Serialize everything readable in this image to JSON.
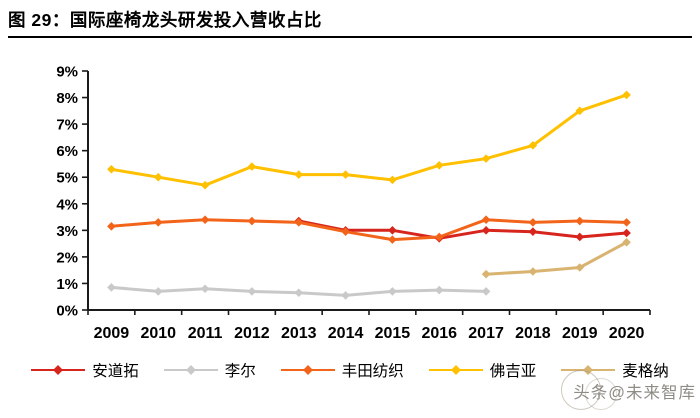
{
  "figure": {
    "title": "图 29：国际座椅龙头研发投入营收占比"
  },
  "watermark": {
    "text": "头条@未来智库"
  },
  "chart_data": {
    "type": "line",
    "title": "图 29：国际座椅龙头研发投入营收占比",
    "categories": [
      "2009",
      "2010",
      "2011",
      "2012",
      "2013",
      "2014",
      "2015",
      "2016",
      "2017",
      "2018",
      "2019",
      "2020"
    ],
    "series": [
      {
        "name": "安道拓",
        "color": "#D7251D",
        "values": [
          null,
          null,
          null,
          null,
          3.35,
          3.0,
          3.0,
          2.7,
          3.0,
          2.95,
          2.75,
          2.9
        ]
      },
      {
        "name": "李尔",
        "color": "#C9C9C9",
        "values": [
          0.85,
          0.7,
          0.8,
          0.7,
          0.65,
          0.55,
          0.7,
          0.75,
          0.7,
          null,
          null,
          null
        ]
      },
      {
        "name": "丰田纺织",
        "color": "#F3641B",
        "values": [
          3.15,
          3.3,
          3.4,
          3.35,
          3.3,
          2.95,
          2.65,
          2.75,
          3.4,
          3.3,
          3.35,
          3.3
        ]
      },
      {
        "name": "佛吉亚",
        "color": "#FFC000",
        "values": [
          5.3,
          5.0,
          4.7,
          5.4,
          5.1,
          5.1,
          4.9,
          5.45,
          5.7,
          6.2,
          7.5,
          8.1
        ]
      },
      {
        "name": "麦格纳",
        "color": "#D8B470",
        "values": [
          null,
          null,
          null,
          null,
          null,
          null,
          null,
          null,
          1.35,
          1.45,
          1.6,
          2.55
        ]
      }
    ],
    "xlabel": "",
    "ylabel": "",
    "ylim": [
      0,
      9
    ],
    "yticks": [
      "0%",
      "1%",
      "2%",
      "3%",
      "4%",
      "5%",
      "6%",
      "7%",
      "8%",
      "9%"
    ],
    "grid": false,
    "legend_position": "bottom",
    "axis_color": "#1a1a1a"
  }
}
